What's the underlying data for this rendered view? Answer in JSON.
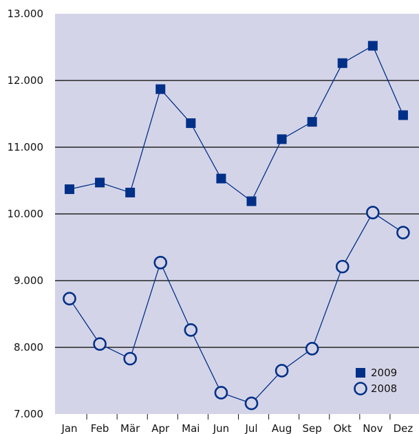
{
  "chart_data": {
    "type": "line",
    "categories": [
      "Jan",
      "Feb",
      "Mär",
      "Apr",
      "Mai",
      "Jun",
      "Jul",
      "Aug",
      "Sep",
      "Okt",
      "Nov",
      "Dez"
    ],
    "series": [
      {
        "name": "2009",
        "marker": "square",
        "values": [
          10370,
          10470,
          10320,
          11870,
          11360,
          10530,
          10190,
          11120,
          11380,
          12260,
          12520,
          11480
        ]
      },
      {
        "name": "2008",
        "marker": "circle",
        "values": [
          8730,
          8050,
          7830,
          9270,
          8260,
          7320,
          7160,
          7650,
          7980,
          9210,
          10020,
          9720
        ]
      }
    ],
    "ylim": [
      7000,
      13000
    ],
    "yticks": [
      7000,
      8000,
      9000,
      10000,
      11000,
      12000,
      13000
    ],
    "ytick_labels": [
      "7.000",
      "8.000",
      "9.000",
      "10.000",
      "11.000",
      "12.000",
      "13.000"
    ],
    "grid": "horizontal",
    "legend": "bottom-right",
    "colors": {
      "plot_bg": "#d4d4e8",
      "series": "#003087",
      "grid": "#000000"
    }
  }
}
